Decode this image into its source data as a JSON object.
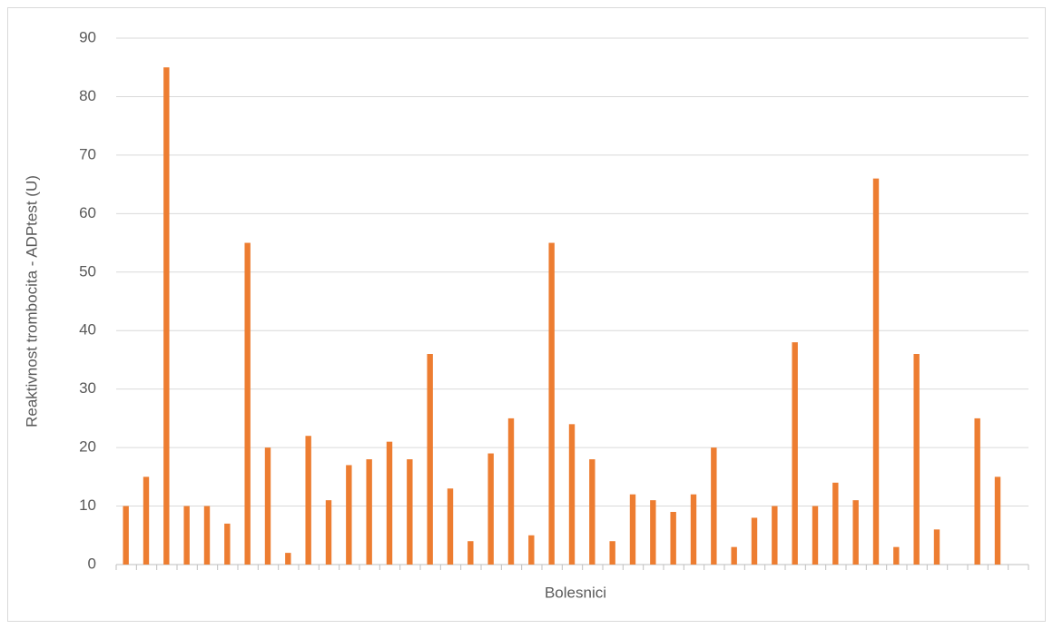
{
  "chart_data": {
    "type": "bar",
    "y_label": "Reaktivnost trombocita - ADPtest (U)",
    "x_label": "Bolesnici",
    "categories": [
      null,
      null,
      null,
      null,
      null,
      null,
      null,
      null,
      null,
      null,
      null,
      null,
      null,
      null,
      null,
      null,
      null,
      null,
      null,
      null,
      null,
      null,
      null,
      null,
      null,
      null,
      null,
      null,
      null,
      null,
      null,
      null,
      null,
      null,
      null,
      null,
      null,
      null,
      null,
      null,
      null,
      null,
      null,
      null,
      null
    ],
    "values": [
      10,
      15,
      85,
      10,
      10,
      7,
      55,
      20,
      2,
      22,
      11,
      17,
      18,
      21,
      18,
      36,
      13,
      4,
      19,
      25,
      5,
      55,
      24,
      18,
      4,
      12,
      11,
      9,
      12,
      20,
      3,
      8,
      10,
      38,
      10,
      14,
      11,
      66,
      3,
      36,
      6,
      null,
      25,
      15,
      null
    ],
    "color": "#ed7d31",
    "ylim": [
      0,
      90
    ],
    "yticks": [
      0,
      10,
      20,
      30,
      40,
      50,
      60,
      70,
      80,
      90
    ],
    "grid": true
  }
}
